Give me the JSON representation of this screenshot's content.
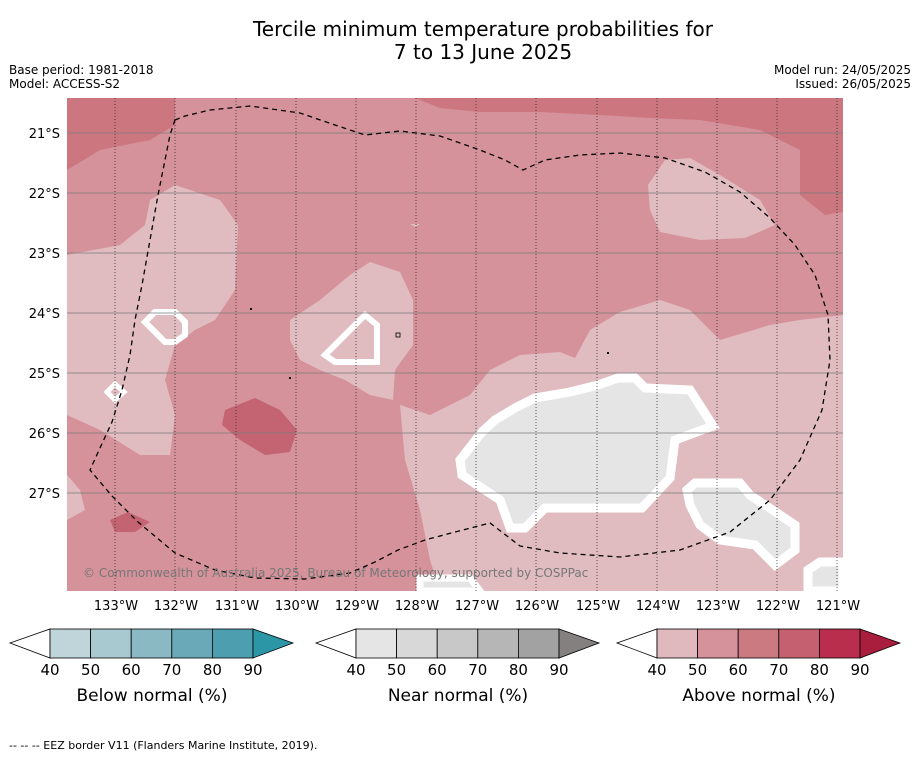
{
  "title": {
    "line1": "Tercile minimum temperature probabilities for",
    "line2": "7 to 13 June 2025"
  },
  "left_info": {
    "base_period": "Base period: 1981-2018",
    "model": "Model: ACCESS-S2"
  },
  "right_info": {
    "model_run": "Model run: 24/05/2025",
    "issued": "Issued: 26/05/2025"
  },
  "map": {
    "lon_labels": [
      "133°W",
      "132°W",
      "131°W",
      "130°W",
      "129°W",
      "128°W",
      "127°W",
      "126°W",
      "125°W",
      "124°W",
      "123°W",
      "122°W",
      "121°W"
    ],
    "lat_labels": [
      "21°S",
      "22°S",
      "23°S",
      "24°S",
      "25°S",
      "26°S",
      "27°S"
    ],
    "copyright": "© Commonwealth of Australia 2025, Bureau of Meteorology, supported by COSPPac",
    "colors": {
      "above_40": "#e0bcc0",
      "above_50": "#d5929a",
      "above_60": "#cc7680",
      "above_70": "#c46472",
      "near_normal": "#e5e5e5",
      "boundary_white": "#ffffff"
    }
  },
  "colorbars": [
    {
      "label": "Below normal (%)",
      "ticks": [
        "40",
        "50",
        "60",
        "70",
        "80",
        "90"
      ],
      "colors": [
        "#ffffff",
        "#bfd5da",
        "#a8c9cf",
        "#8ab9c3",
        "#6aa9b7",
        "#4d9eae",
        "#2b97a6"
      ]
    },
    {
      "label": "Near normal (%)",
      "ticks": [
        "40",
        "50",
        "60",
        "70",
        "80",
        "90"
      ],
      "colors": [
        "#ffffff",
        "#e5e5e5",
        "#d8d8d8",
        "#c8c8c8",
        "#b6b6b6",
        "#a2a2a2",
        "#858080"
      ]
    },
    {
      "label": "Above normal (%)",
      "ticks": [
        "40",
        "50",
        "60",
        "70",
        "80",
        "90"
      ],
      "colors": [
        "#ffffff",
        "#e0b9bf",
        "#d5929a",
        "#cc7a82",
        "#c46070",
        "#b82e4c",
        "#a81e3c"
      ]
    }
  ],
  "footnote": "--  --  -- EEZ border V11 (Flanders Marine Institute, 2019)."
}
